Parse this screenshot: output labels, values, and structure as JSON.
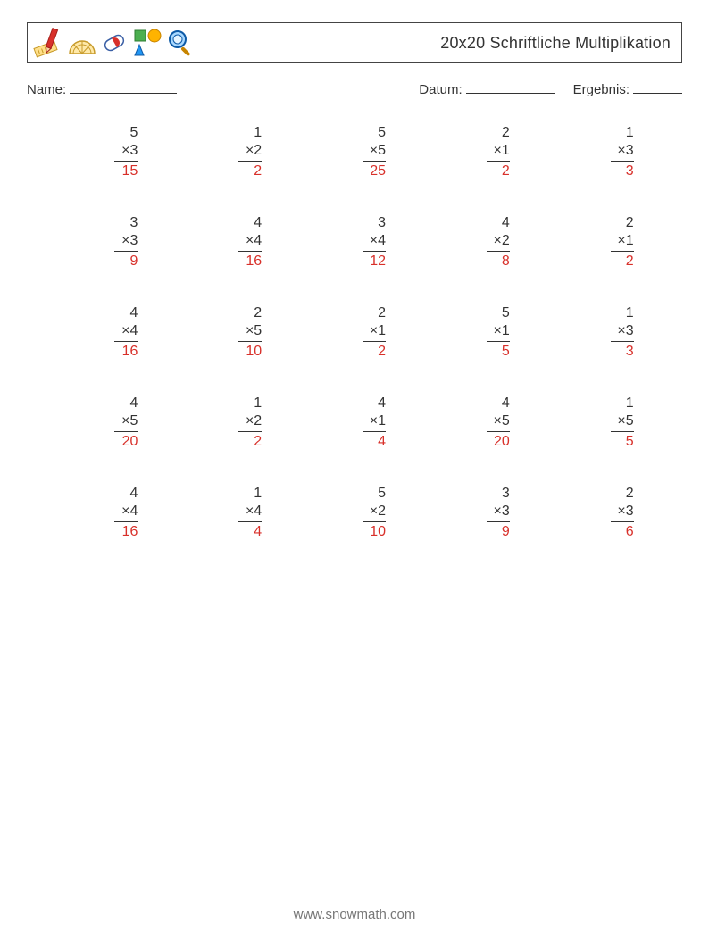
{
  "header": {
    "title": "20x20 Schriftliche Multiplikation"
  },
  "info": {
    "name_label": "Name:",
    "date_label": "Datum:",
    "result_label": "Ergebnis:"
  },
  "problems": [
    {
      "a": "5",
      "b": "3",
      "ans": "15"
    },
    {
      "a": "1",
      "b": "2",
      "ans": "2"
    },
    {
      "a": "5",
      "b": "5",
      "ans": "25"
    },
    {
      "a": "2",
      "b": "1",
      "ans": "2"
    },
    {
      "a": "1",
      "b": "3",
      "ans": "3"
    },
    {
      "a": "3",
      "b": "3",
      "ans": "9"
    },
    {
      "a": "4",
      "b": "4",
      "ans": "16"
    },
    {
      "a": "3",
      "b": "4",
      "ans": "12"
    },
    {
      "a": "4",
      "b": "2",
      "ans": "8"
    },
    {
      "a": "2",
      "b": "1",
      "ans": "2"
    },
    {
      "a": "4",
      "b": "4",
      "ans": "16"
    },
    {
      "a": "2",
      "b": "5",
      "ans": "10"
    },
    {
      "a": "2",
      "b": "1",
      "ans": "2"
    },
    {
      "a": "5",
      "b": "1",
      "ans": "5"
    },
    {
      "a": "1",
      "b": "3",
      "ans": "3"
    },
    {
      "a": "4",
      "b": "5",
      "ans": "20"
    },
    {
      "a": "1",
      "b": "2",
      "ans": "2"
    },
    {
      "a": "4",
      "b": "1",
      "ans": "4"
    },
    {
      "a": "4",
      "b": "5",
      "ans": "20"
    },
    {
      "a": "1",
      "b": "5",
      "ans": "5"
    },
    {
      "a": "4",
      "b": "4",
      "ans": "16"
    },
    {
      "a": "1",
      "b": "4",
      "ans": "4"
    },
    {
      "a": "5",
      "b": "2",
      "ans": "10"
    },
    {
      "a": "3",
      "b": "3",
      "ans": "9"
    },
    {
      "a": "2",
      "b": "3",
      "ans": "6"
    }
  ],
  "style": {
    "multiply_sign": "×",
    "answer_color": "#d8302a",
    "text_color": "#333333",
    "border_color": "#444444"
  },
  "footer": {
    "url": "www.snowmath.com"
  }
}
